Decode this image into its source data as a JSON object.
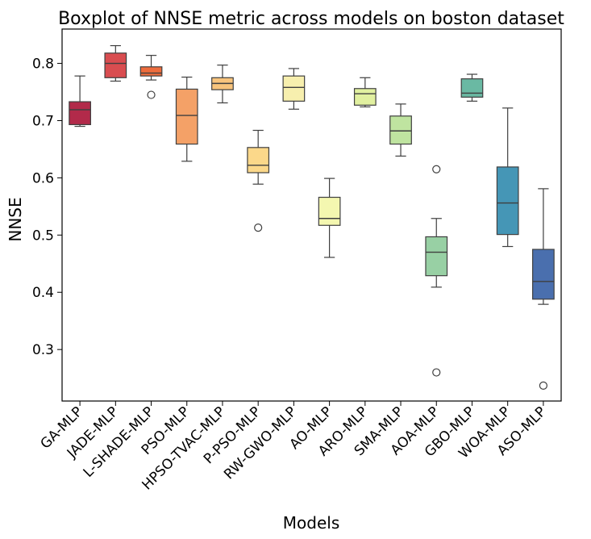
{
  "chart_data": {
    "type": "boxplot",
    "title": "Boxplot of NNSE metric across models on boston dataset",
    "xlabel": "Models",
    "ylabel": "NNSE",
    "ylim": [
      0.21,
      0.86
    ],
    "yticks": [
      0.3,
      0.4,
      0.5,
      0.6,
      0.7,
      0.8
    ],
    "ytick_labels": [
      "0.3",
      "0.4",
      "0.5",
      "0.6",
      "0.7",
      "0.8"
    ],
    "grid": false,
    "series": [
      {
        "category": "GA-MLP",
        "color": "#b22a4a",
        "whisker_low": 0.69,
        "q1": 0.693,
        "median": 0.719,
        "q3": 0.733,
        "whisker_high": 0.778,
        "outliers": []
      },
      {
        "category": "JADE-MLP",
        "color": "#d94d50",
        "whisker_low": 0.769,
        "q1": 0.775,
        "median": 0.8,
        "q3": 0.818,
        "whisker_high": 0.831,
        "outliers": []
      },
      {
        "category": "L-SHADE-MLP",
        "color": "#ed6c3d",
        "whisker_low": 0.771,
        "q1": 0.778,
        "median": 0.783,
        "q3": 0.794,
        "whisker_high": 0.814,
        "outliers": [
          0.745
        ]
      },
      {
        "category": "PSO-MLP",
        "color": "#f4a167",
        "whisker_low": 0.629,
        "q1": 0.659,
        "median": 0.709,
        "q3": 0.755,
        "whisker_high": 0.776,
        "outliers": []
      },
      {
        "category": "HPSO-TVAC-MLP",
        "color": "#f8c47d",
        "whisker_low": 0.731,
        "q1": 0.754,
        "median": 0.765,
        "q3": 0.775,
        "whisker_high": 0.797,
        "outliers": []
      },
      {
        "category": "P-PSO-MLP",
        "color": "#fbd88a",
        "whisker_low": 0.589,
        "q1": 0.609,
        "median": 0.622,
        "q3": 0.653,
        "whisker_high": 0.683,
        "outliers": [
          0.513
        ]
      },
      {
        "category": "RW-GWO-MLP",
        "color": "#f7efae",
        "whisker_low": 0.72,
        "q1": 0.734,
        "median": 0.758,
        "q3": 0.778,
        "whisker_high": 0.791,
        "outliers": []
      },
      {
        "category": "AO-MLP",
        "color": "#f4f7b0",
        "whisker_low": 0.461,
        "q1": 0.517,
        "median": 0.529,
        "q3": 0.566,
        "whisker_high": 0.599,
        "outliers": []
      },
      {
        "category": "ARO-MLP",
        "color": "#e1f0a0",
        "whisker_low": 0.724,
        "q1": 0.727,
        "median": 0.747,
        "q3": 0.756,
        "whisker_high": 0.775,
        "outliers": []
      },
      {
        "category": "SMA-MLP",
        "color": "#bfe4a0",
        "whisker_low": 0.638,
        "q1": 0.659,
        "median": 0.682,
        "q3": 0.708,
        "whisker_high": 0.729,
        "outliers": []
      },
      {
        "category": "AOA-MLP",
        "color": "#98d0a4",
        "whisker_low": 0.409,
        "q1": 0.429,
        "median": 0.47,
        "q3": 0.497,
        "whisker_high": 0.529,
        "outliers": [
          0.615,
          0.26
        ]
      },
      {
        "category": "GBO-MLP",
        "color": "#6ab9a3",
        "whisker_low": 0.734,
        "q1": 0.741,
        "median": 0.748,
        "q3": 0.773,
        "whisker_high": 0.781,
        "outliers": []
      },
      {
        "category": "WOA-MLP",
        "color": "#4596b6",
        "whisker_low": 0.48,
        "q1": 0.501,
        "median": 0.556,
        "q3": 0.619,
        "whisker_high": 0.722,
        "outliers": []
      },
      {
        "category": "ASO-MLP",
        "color": "#4a6fae",
        "whisker_low": 0.379,
        "q1": 0.388,
        "median": 0.419,
        "q3": 0.475,
        "whisker_high": 0.581,
        "outliers": [
          0.237
        ]
      }
    ]
  }
}
